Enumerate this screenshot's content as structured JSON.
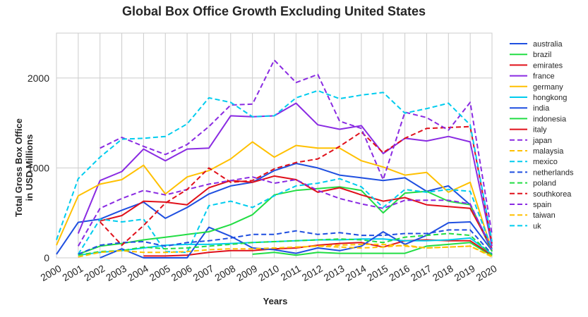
{
  "chart_data": {
    "type": "line",
    "title": "Global Box Office Growth Excluding United States",
    "xlabel": "Years",
    "ylabel_lines": [
      "Total Gross Box Office",
      "in USD Millions"
    ],
    "x": [
      2000,
      2001,
      2002,
      2003,
      2004,
      2005,
      2006,
      2007,
      2008,
      2009,
      2010,
      2011,
      2012,
      2013,
      2014,
      2015,
      2016,
      2017,
      2018,
      2019,
      2020
    ],
    "xlim": [
      2000,
      2020
    ],
    "ylim": [
      0,
      2500
    ],
    "yticks": [
      0,
      1000,
      2000
    ],
    "grid": true,
    "legend_position": "outside-right",
    "series": [
      {
        "name": "australia",
        "color": "#1f4fe0",
        "dash": "solid",
        "values": [
          40,
          395,
          430,
          530,
          620,
          440,
          560,
          710,
          800,
          840,
          970,
          1050,
          1000,
          920,
          890,
          860,
          890,
          740,
          800,
          590,
          100
        ]
      },
      {
        "name": "brazil",
        "color": "#22dd44",
        "dash": "solid",
        "values": [
          null,
          null,
          null,
          null,
          null,
          null,
          null,
          null,
          null,
          40,
          60,
          30,
          60,
          50,
          50,
          50,
          50,
          130,
          150,
          170,
          20
        ]
      },
      {
        "name": "emirates",
        "color": "#e0101a",
        "dash": "solid",
        "values": [
          null,
          null,
          null,
          null,
          20,
          20,
          30,
          60,
          80,
          80,
          100,
          110,
          140,
          160,
          170,
          120,
          190,
          200,
          190,
          190,
          30
        ]
      },
      {
        "name": "france",
        "color": "#8a2be2",
        "dash": "solid",
        "values": [
          null,
          270,
          860,
          960,
          1210,
          1080,
          1210,
          1220,
          1580,
          1570,
          1580,
          1720,
          1480,
          1430,
          1470,
          1160,
          1330,
          1300,
          1350,
          1290,
          130
        ]
      },
      {
        "name": "germany",
        "color": "#ffc000",
        "dash": "solid",
        "values": [
          140,
          690,
          820,
          870,
          1030,
          710,
          900,
          970,
          1100,
          1290,
          1120,
          1250,
          1220,
          1220,
          1080,
          1010,
          920,
          950,
          730,
          840,
          80
        ]
      },
      {
        "name": "hongkong",
        "color": "#00ccee",
        "dash": "solid",
        "values": [
          null,
          30,
          60,
          80,
          110,
          140,
          150,
          150,
          160,
          170,
          180,
          190,
          200,
          200,
          210,
          210,
          190,
          190,
          200,
          220,
          40
        ]
      },
      {
        "name": "india",
        "color": "#1f4fe0",
        "dash": "solid",
        "values": [
          null,
          null,
          0,
          100,
          0,
          0,
          0,
          340,
          240,
          110,
          90,
          50,
          110,
          80,
          130,
          290,
          150,
          250,
          390,
          400,
          80
        ]
      },
      {
        "name": "indonesia",
        "color": "#22dd44",
        "dash": "solid",
        "values": [
          null,
          40,
          130,
          160,
          200,
          230,
          260,
          290,
          370,
          480,
          700,
          750,
          770,
          790,
          750,
          500,
          720,
          740,
          630,
          590,
          70
        ]
      },
      {
        "name": "italy",
        "color": "#e0101a",
        "dash": "solid",
        "values": [
          null,
          null,
          410,
          470,
          630,
          620,
          590,
          780,
          860,
          840,
          910,
          870,
          730,
          780,
          700,
          630,
          670,
          590,
          570,
          550,
          100
        ]
      },
      {
        "name": "japan",
        "color": "#8a2be2",
        "dash": "dashed",
        "values": [
          null,
          130,
          550,
          660,
          750,
          700,
          760,
          820,
          860,
          900,
          830,
          870,
          750,
          660,
          600,
          550,
          640,
          640,
          640,
          600,
          80
        ]
      },
      {
        "name": "malaysia",
        "color": "#ffc000",
        "dash": "dashed",
        "values": [
          null,
          null,
          null,
          null,
          null,
          null,
          null,
          null,
          null,
          null,
          null,
          120,
          130,
          140,
          150,
          150,
          130,
          110,
          120,
          130,
          20
        ]
      },
      {
        "name": "mexico",
        "color": "#00ccee",
        "dash": "dashed",
        "values": [
          null,
          40,
          430,
          400,
          430,
          70,
          60,
          580,
          630,
          560,
          690,
          800,
          830,
          880,
          790,
          560,
          760,
          730,
          760,
          740,
          100
        ]
      },
      {
        "name": "netherlands",
        "color": "#1f4fe0",
        "dash": "dashed",
        "values": [
          null,
          40,
          140,
          170,
          180,
          130,
          170,
          190,
          220,
          260,
          260,
          300,
          260,
          280,
          250,
          250,
          270,
          270,
          310,
          310,
          40
        ]
      },
      {
        "name": "poland",
        "color": "#22dd44",
        "dash": "dashed",
        "values": [
          null,
          30,
          70,
          80,
          120,
          100,
          110,
          130,
          150,
          170,
          180,
          190,
          200,
          210,
          200,
          170,
          230,
          250,
          270,
          250,
          30
        ]
      },
      {
        "name": "southkorea",
        "color": "#e0101a",
        "dash": "dashed",
        "values": [
          null,
          null,
          400,
          140,
          360,
          610,
          760,
          1000,
          840,
          860,
          990,
          1060,
          1100,
          1240,
          1400,
          1170,
          1330,
          1440,
          1450,
          1460,
          160
        ]
      },
      {
        "name": "spain",
        "color": "#8a2be2",
        "dash": "dashed",
        "values": [
          null,
          null,
          1220,
          1340,
          1240,
          1150,
          1260,
          1460,
          1700,
          1710,
          2200,
          1950,
          2040,
          1520,
          1440,
          870,
          1620,
          1560,
          1420,
          1730,
          260
        ]
      },
      {
        "name": "taiwan",
        "color": "#ffc000",
        "dash": "dashed",
        "values": [
          null,
          10,
          60,
          80,
          60,
          60,
          70,
          90,
          100,
          100,
          110,
          120,
          130,
          120,
          110,
          120,
          140,
          110,
          120,
          130,
          10
        ]
      },
      {
        "name": "uk",
        "color": "#00ccee",
        "dash": "dashed",
        "values": [
          200,
          880,
          1120,
          1320,
          1330,
          1350,
          1490,
          1780,
          1730,
          1570,
          1580,
          1780,
          1860,
          1770,
          1810,
          1840,
          1610,
          1660,
          1720,
          1480,
          180
        ]
      }
    ]
  }
}
